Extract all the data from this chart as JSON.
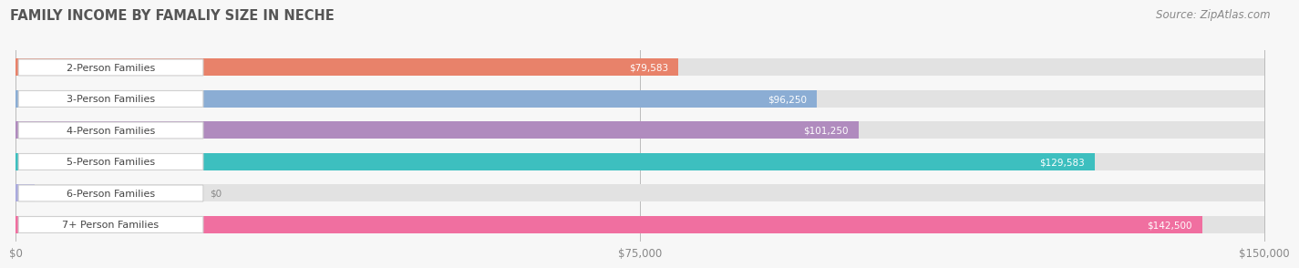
{
  "title": "FAMILY INCOME BY FAMALIY SIZE IN NECHE",
  "source": "Source: ZipAtlas.com",
  "categories": [
    "2-Person Families",
    "3-Person Families",
    "4-Person Families",
    "5-Person Families",
    "6-Person Families",
    "7+ Person Families"
  ],
  "values": [
    79583,
    96250,
    101250,
    129583,
    0,
    142500
  ],
  "max_value": 150000,
  "bar_colors": [
    "#E8826A",
    "#8BADD4",
    "#B08BBE",
    "#3DBFBF",
    "#AAAADD",
    "#F06FA0"
  ],
  "value_labels": [
    "$79,583",
    "$96,250",
    "$101,250",
    "$129,583",
    "$0",
    "$142,500"
  ],
  "xticks": [
    0,
    75000,
    150000
  ],
  "xticklabels": [
    "$0",
    "$75,000",
    "$150,000"
  ],
  "background_color": "#f7f7f7",
  "bar_bg_color": "#e2e2e2",
  "title_fontsize": 10.5,
  "source_fontsize": 8.5,
  "label_fontsize": 8.0,
  "value_fontsize": 7.5
}
